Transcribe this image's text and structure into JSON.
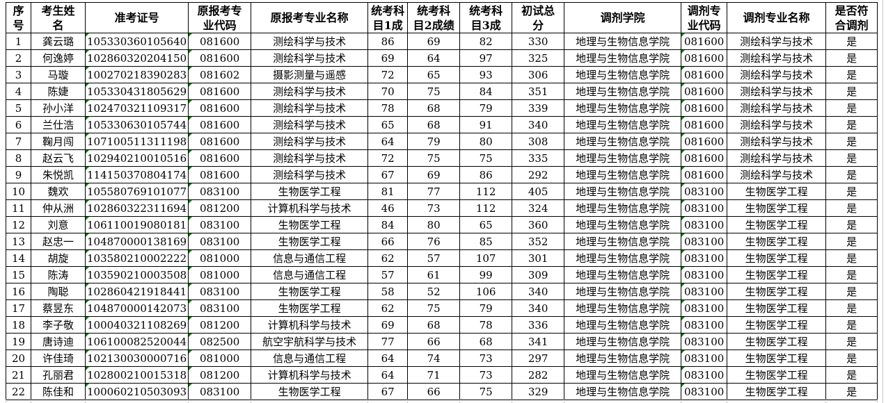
{
  "sheet": {
    "colors": {
      "cell_border": "#000000",
      "gridline": "#c9c9c9",
      "text_flag_green": "#008000"
    },
    "table": {
      "columns": [
        {
          "key": "index",
          "label": "序\n号"
        },
        {
          "key": "name",
          "label": "考生姓\n名"
        },
        {
          "key": "ticket-no",
          "label": "准考证号"
        },
        {
          "key": "orig-major-code",
          "label": "原报考专\n业代码"
        },
        {
          "key": "orig-major-name",
          "label": "原报考专业名称"
        },
        {
          "key": "score-subject1",
          "label": "统考科\n目1成"
        },
        {
          "key": "score-subject2",
          "label": "统考科\n目2成绩"
        },
        {
          "key": "score-subject3",
          "label": "统考科\n目3成"
        },
        {
          "key": "total-score",
          "label": "初试总\n分"
        },
        {
          "key": "transfer-college",
          "label": "调剂学院"
        },
        {
          "key": "transfer-major-code",
          "label": "调剂专\n业代码"
        },
        {
          "key": "transfer-major-name",
          "label": "调剂专业名称"
        },
        {
          "key": "eligible",
          "label": "是否符\n合调剂"
        }
      ],
      "flag_column_keys": [
        "ticket-no",
        "orig-major-code",
        "transfer-major-code"
      ],
      "rows": [
        [
          "1",
          "龚云璐",
          "105330360105640",
          "081600",
          "测绘科学与技术",
          "86",
          "69",
          "82",
          "330",
          "地理与生物信息学院",
          "081600",
          "测绘科学与技术",
          "是"
        ],
        [
          "2",
          "何逸婷",
          "102860320204150",
          "081600",
          "测绘科学与技术",
          "69",
          "64",
          "97",
          "325",
          "地理与生物信息学院",
          "081600",
          "测绘科学与技术",
          "是"
        ],
        [
          "3",
          "马璇",
          "100270218390283",
          "081602",
          "摄影测量与遥感",
          "72",
          "65",
          "93",
          "306",
          "地理与生物信息学院",
          "081600",
          "测绘科学与技术",
          "是"
        ],
        [
          "4",
          "陈婕",
          "105330431805629",
          "081600",
          "测绘科学与技术",
          "70",
          "75",
          "84",
          "351",
          "地理与生物信息学院",
          "081600",
          "测绘科学与技术",
          "是"
        ],
        [
          "5",
          "孙小洋",
          "102470321109317",
          "081600",
          "测绘科学与技术",
          "78",
          "68",
          "79",
          "339",
          "地理与生物信息学院",
          "081600",
          "测绘科学与技术",
          "是"
        ],
        [
          "6",
          "兰仕浩",
          "105330630105744",
          "081600",
          "测绘科学与技术",
          "65",
          "68",
          "91",
          "340",
          "地理与生物信息学院",
          "081600",
          "测绘科学与技术",
          "是"
        ],
        [
          "7",
          "鞠月闯",
          "107100511311198",
          "081600",
          "测绘科学与技术",
          "64",
          "79",
          "80",
          "308",
          "地理与生物信息学院",
          "081600",
          "测绘科学与技术",
          "是"
        ],
        [
          "8",
          "赵云飞",
          "102940210010516",
          "081600",
          "测绘科学与技术",
          "72",
          "75",
          "75",
          "335",
          "地理与生物信息学院",
          "081600",
          "测绘科学与技术",
          "是"
        ],
        [
          "9",
          "朱悦凯",
          "114150370804174",
          "081600",
          "测绘科学与技术",
          "67",
          "69",
          "86",
          "292",
          "地理与生物信息学院",
          "081600",
          "测绘科学与技术",
          "是"
        ],
        [
          "10",
          "魏欢",
          "105580769101077",
          "083100",
          "生物医学工程",
          "81",
          "77",
          "112",
          "405",
          "地理与生物信息学院",
          "083100",
          "生物医学工程",
          "是"
        ],
        [
          "11",
          "仲从洲",
          "102860322311694",
          "081200",
          "计算机科学与技术",
          "46",
          "73",
          "112",
          "324",
          "地理与生物信息学院",
          "083100",
          "生物医学工程",
          "是"
        ],
        [
          "12",
          "刘意",
          "106110019080181",
          "083100",
          "生物医学工程",
          "84",
          "80",
          "65",
          "360",
          "地理与生物信息学院",
          "083100",
          "生物医学工程",
          "是"
        ],
        [
          "13",
          "赵忠一",
          "104870000138169",
          "083100",
          "生物医学工程",
          "66",
          "76",
          "85",
          "352",
          "地理与生物信息学院",
          "083100",
          "生物医学工程",
          "是"
        ],
        [
          "14",
          "胡旋",
          "103580210002222",
          "081000",
          "信息与通信工程",
          "62",
          "57",
          "107",
          "301",
          "地理与生物信息学院",
          "083100",
          "生物医学工程",
          "是"
        ],
        [
          "15",
          "陈涛",
          "103590210003508",
          "081000",
          "信息与通信工程",
          "57",
          "61",
          "99",
          "309",
          "地理与生物信息学院",
          "083100",
          "生物医学工程",
          "是"
        ],
        [
          "16",
          "陶聪",
          "102860421918441",
          "083100",
          "生物医学工程",
          "58",
          "52",
          "106",
          "340",
          "地理与生物信息学院",
          "083100",
          "生物医学工程",
          "是"
        ],
        [
          "17",
          "蔡昱东",
          "104870000142073",
          "083100",
          "生物医学工程",
          "62",
          "75",
          "79",
          "340",
          "地理与生物信息学院",
          "083100",
          "生物医学工程",
          "是"
        ],
        [
          "18",
          "李子敬",
          "100040321108269",
          "081200",
          "计算机科学与技术",
          "69",
          "68",
          "78",
          "336",
          "地理与生物信息学院",
          "083100",
          "生物医学工程",
          "是"
        ],
        [
          "19",
          "唐诗迪",
          "106100082520044",
          "082500",
          "航空宇航科学与技术",
          "77",
          "66",
          "68",
          "341",
          "地理与生物信息学院",
          "083100",
          "生物医学工程",
          "是"
        ],
        [
          "20",
          "许佳琦",
          "102130030000716",
          "081000",
          "信息与通信工程",
          "64",
          "74",
          "73",
          "297",
          "地理与生物信息学院",
          "083100",
          "生物医学工程",
          "是"
        ],
        [
          "21",
          "孔丽君",
          "102800210015318",
          "081200",
          "计算机科学与技术",
          "64",
          "71",
          "73",
          "282",
          "地理与生物信息学院",
          "083100",
          "生物医学工程",
          "是"
        ],
        [
          "22",
          "陈佳和",
          "100060210503093",
          "083100",
          "生物医学工程",
          "67",
          "66",
          "75",
          "329",
          "地理与生物信息学院",
          "083100",
          "生物医学工程",
          "是"
        ]
      ]
    }
  }
}
